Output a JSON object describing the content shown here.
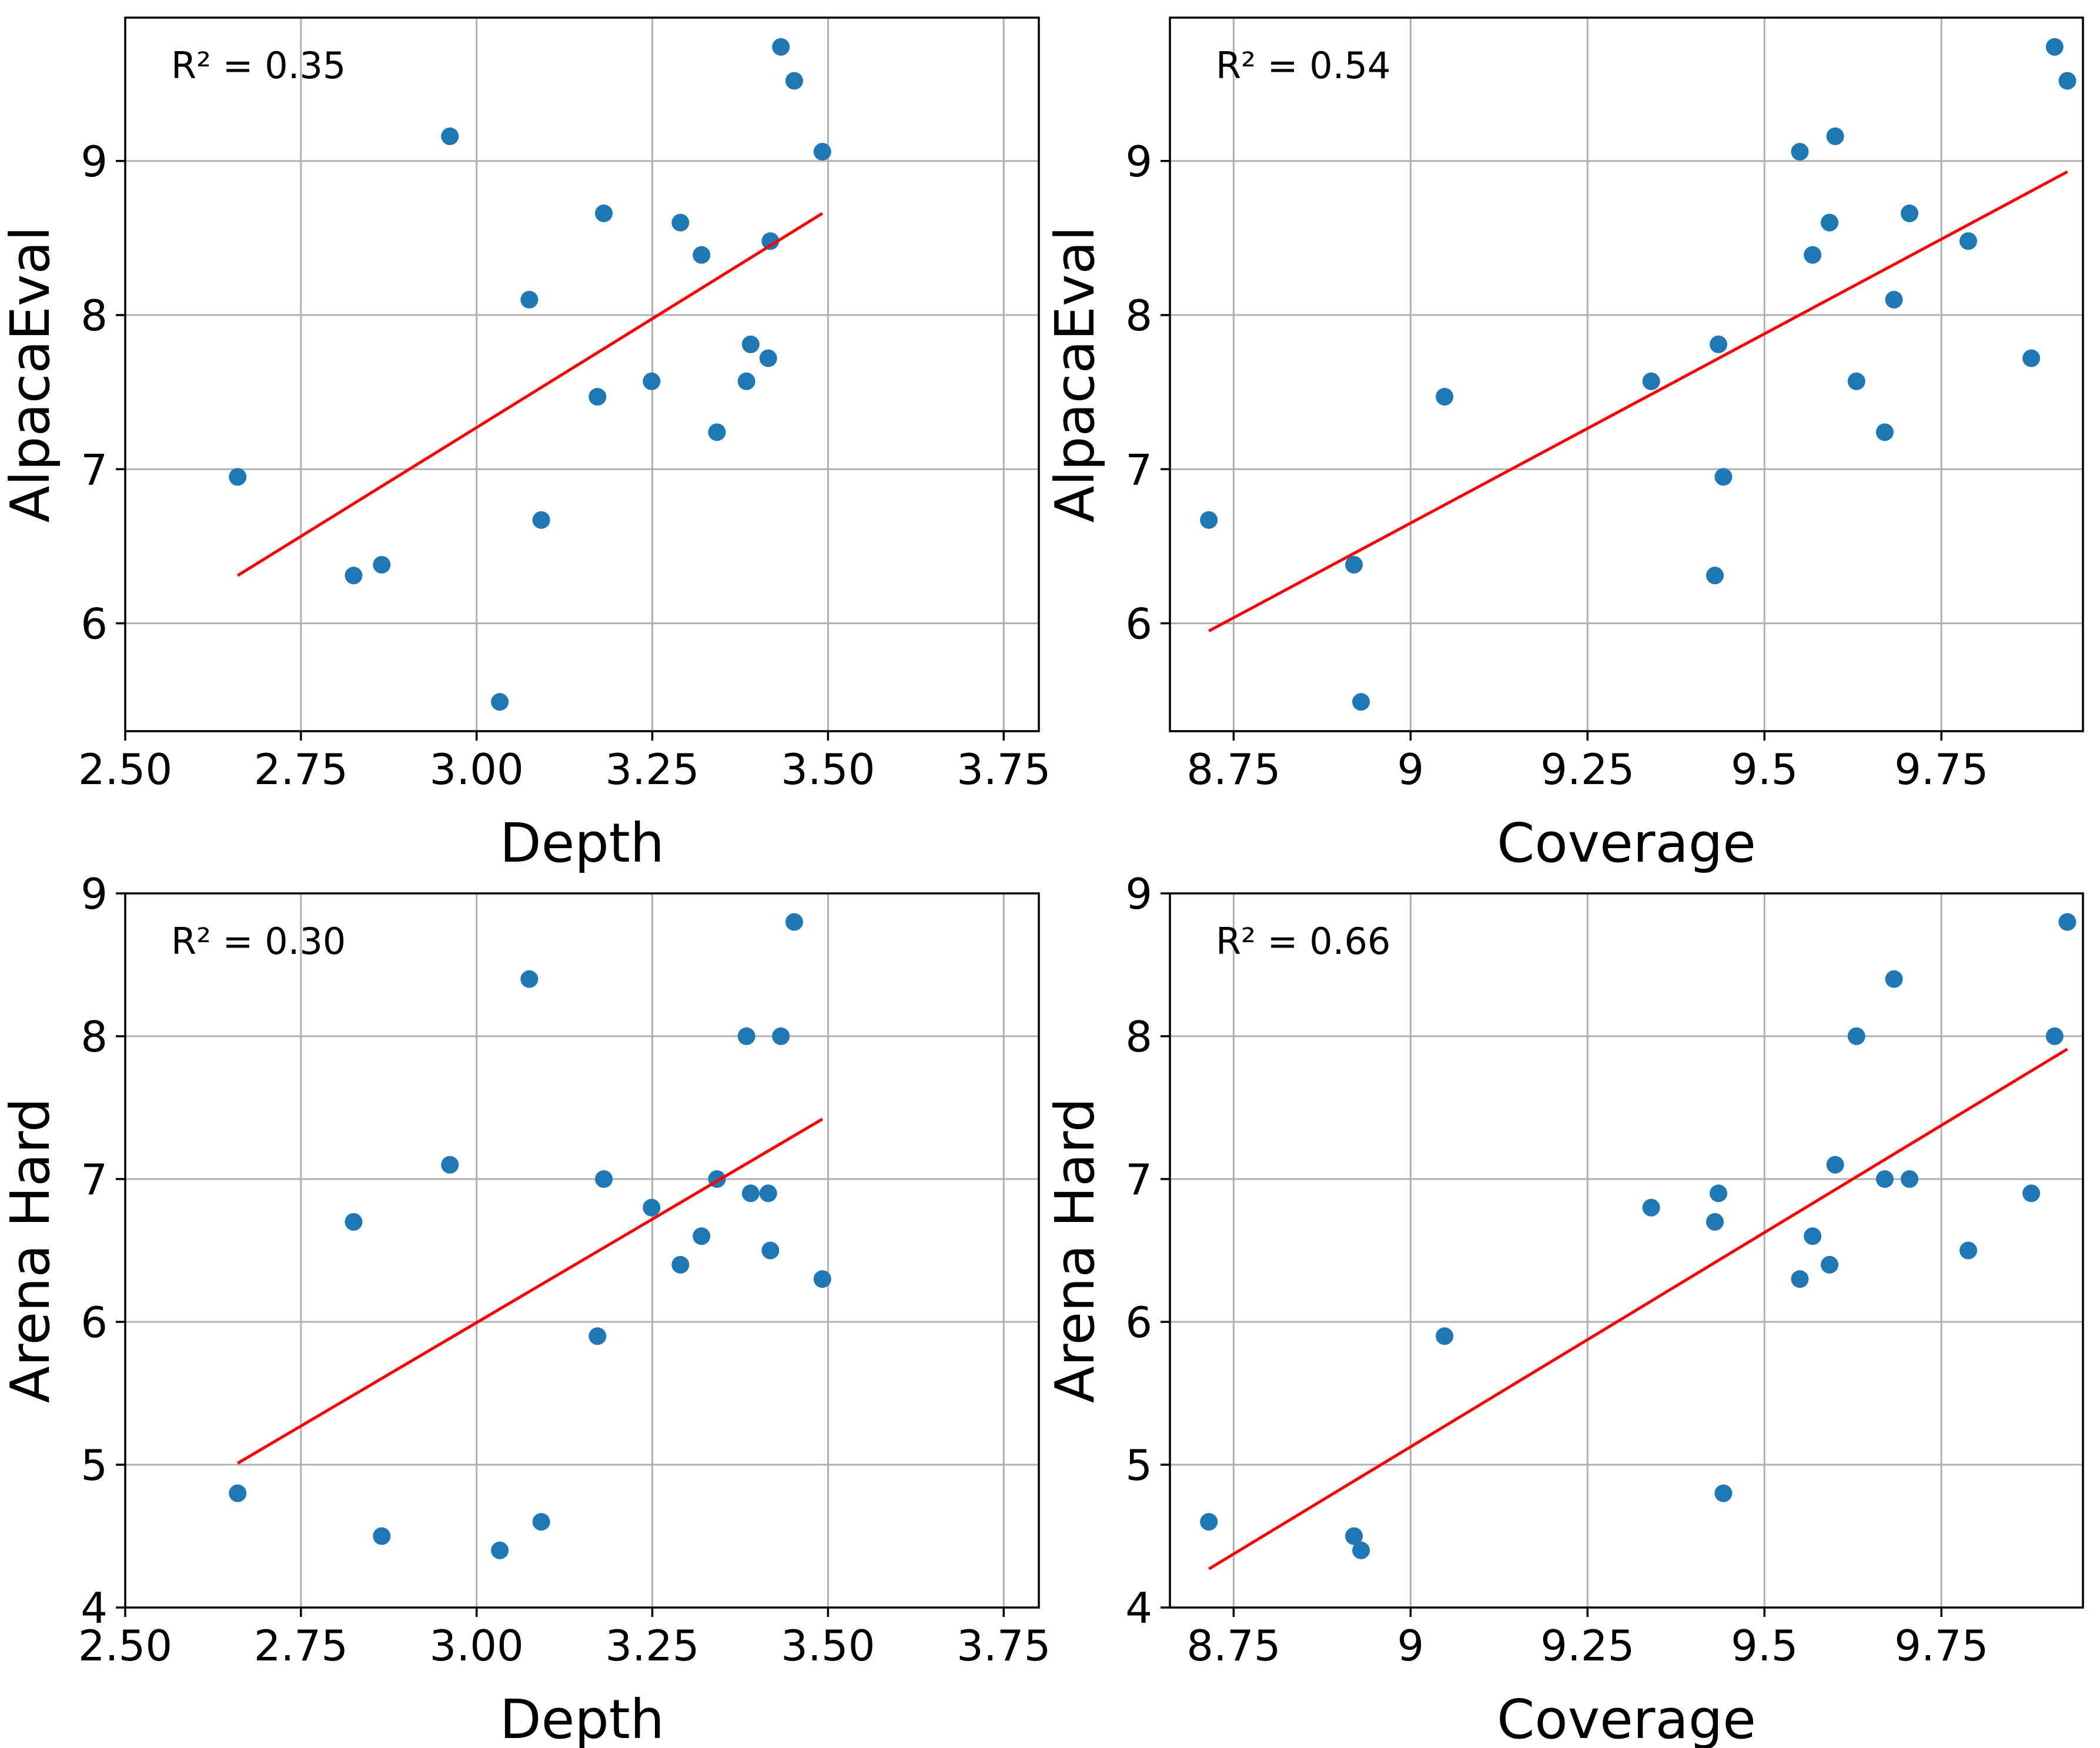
{
  "colors": {
    "points": "#1f77b4",
    "fit_line": "#ff0000",
    "grid": "#b0b0b0"
  },
  "chart_data": [
    {
      "type": "scatter",
      "xlabel": "Depth",
      "ylabel": "AlpacaEval",
      "annotation": "R² = 0.35",
      "xlim": [
        2.5,
        3.8
      ],
      "ylim": [
        5.3,
        9.93
      ],
      "xticks": [
        2.5,
        2.75,
        3.0,
        3.25,
        3.5,
        3.75
      ],
      "xtick_labels": [
        "2.50",
        "2.75",
        "3.00",
        "3.25",
        "3.50",
        "3.75"
      ],
      "yticks": [
        6,
        7,
        8,
        9
      ],
      "ytick_labels": [
        "6",
        "7",
        "8",
        "9"
      ],
      "points": [
        [
          2.66,
          6.95
        ],
        [
          2.825,
          6.31
        ],
        [
          2.865,
          6.38
        ],
        [
          2.962,
          9.16
        ],
        [
          3.033,
          5.49
        ],
        [
          3.075,
          8.1
        ],
        [
          3.092,
          6.67
        ],
        [
          3.172,
          7.47
        ],
        [
          3.181,
          8.66
        ],
        [
          3.249,
          7.57
        ],
        [
          3.29,
          8.6
        ],
        [
          3.32,
          8.39
        ],
        [
          3.342,
          7.24
        ],
        [
          3.384,
          7.57
        ],
        [
          3.39,
          7.81
        ],
        [
          3.415,
          7.72
        ],
        [
          3.418,
          8.48
        ],
        [
          3.433,
          9.74
        ],
        [
          3.452,
          9.52
        ],
        [
          3.492,
          9.06
        ]
      ],
      "fit_line": [
        [
          2.66,
          6.31
        ],
        [
          3.492,
          8.66
        ]
      ]
    },
    {
      "type": "scatter",
      "xlabel": "Coverage",
      "ylabel": "AlpacaEval",
      "annotation": "R² = 0.54",
      "xlim": [
        8.66,
        9.95
      ],
      "ylim": [
        5.3,
        9.93
      ],
      "xticks": [
        8.75,
        9.0,
        9.25,
        9.5,
        9.75
      ],
      "xtick_labels": [
        "8.75",
        "9",
        "9.25",
        "9.5",
        "9.75"
      ],
      "yticks": [
        6,
        7,
        8,
        9
      ],
      "ytick_labels": [
        "6",
        "7",
        "8",
        "9"
      ],
      "points": [
        [
          8.715,
          6.67
        ],
        [
          8.92,
          6.38
        ],
        [
          8.93,
          5.49
        ],
        [
          9.048,
          7.47
        ],
        [
          9.34,
          7.57
        ],
        [
          9.43,
          6.31
        ],
        [
          9.435,
          7.81
        ],
        [
          9.442,
          6.95
        ],
        [
          9.55,
          9.06
        ],
        [
          9.568,
          8.39
        ],
        [
          9.592,
          8.6
        ],
        [
          9.6,
          9.16
        ],
        [
          9.63,
          7.57
        ],
        [
          9.67,
          7.24
        ],
        [
          9.683,
          8.1
        ],
        [
          9.705,
          8.66
        ],
        [
          9.788,
          8.48
        ],
        [
          9.877,
          7.72
        ],
        [
          9.91,
          9.74
        ],
        [
          9.928,
          9.52
        ]
      ],
      "fit_line": [
        [
          8.715,
          5.95
        ],
        [
          9.928,
          8.93
        ]
      ]
    },
    {
      "type": "scatter",
      "xlabel": "Depth",
      "ylabel": "Arena Hard",
      "annotation": "R² = 0.30",
      "xlim": [
        2.5,
        3.8
      ],
      "ylim": [
        4.0,
        9.0
      ],
      "xticks": [
        2.5,
        2.75,
        3.0,
        3.25,
        3.5,
        3.75
      ],
      "xtick_labels": [
        "2.50",
        "2.75",
        "3.00",
        "3.25",
        "3.50",
        "3.75"
      ],
      "yticks": [
        4,
        5,
        6,
        7,
        8,
        9
      ],
      "ytick_labels": [
        "4",
        "5",
        "6",
        "7",
        "8",
        "9"
      ],
      "points": [
        [
          2.66,
          4.8
        ],
        [
          2.825,
          6.7
        ],
        [
          2.865,
          4.5
        ],
        [
          2.962,
          7.1
        ],
        [
          3.033,
          4.4
        ],
        [
          3.075,
          8.4
        ],
        [
          3.092,
          4.6
        ],
        [
          3.172,
          5.9
        ],
        [
          3.181,
          7.0
        ],
        [
          3.249,
          6.8
        ],
        [
          3.29,
          6.4
        ],
        [
          3.32,
          6.6
        ],
        [
          3.342,
          7.0
        ],
        [
          3.384,
          8.0
        ],
        [
          3.39,
          6.9
        ],
        [
          3.415,
          6.9
        ],
        [
          3.418,
          6.5
        ],
        [
          3.433,
          8.0
        ],
        [
          3.452,
          8.8
        ],
        [
          3.492,
          6.3
        ]
      ],
      "fit_line": [
        [
          2.66,
          5.01
        ],
        [
          3.492,
          7.42
        ]
      ]
    },
    {
      "type": "scatter",
      "xlabel": "Coverage",
      "ylabel": "Arena Hard",
      "annotation": "R² = 0.66",
      "xlim": [
        8.66,
        9.95
      ],
      "ylim": [
        4.0,
        9.0
      ],
      "xticks": [
        8.75,
        9.0,
        9.25,
        9.5,
        9.75
      ],
      "xtick_labels": [
        "8.75",
        "9",
        "9.25",
        "9.5",
        "9.75"
      ],
      "yticks": [
        4,
        5,
        6,
        7,
        8,
        9
      ],
      "ytick_labels": [
        "4",
        "5",
        "6",
        "7",
        "8",
        "9"
      ],
      "points": [
        [
          8.715,
          4.6
        ],
        [
          8.92,
          4.5
        ],
        [
          8.93,
          4.4
        ],
        [
          9.048,
          5.9
        ],
        [
          9.34,
          6.8
        ],
        [
          9.43,
          6.7
        ],
        [
          9.435,
          6.9
        ],
        [
          9.442,
          4.8
        ],
        [
          9.55,
          6.3
        ],
        [
          9.568,
          6.6
        ],
        [
          9.592,
          6.4
        ],
        [
          9.6,
          7.1
        ],
        [
          9.63,
          8.0
        ],
        [
          9.67,
          7.0
        ],
        [
          9.683,
          8.4
        ],
        [
          9.705,
          7.0
        ],
        [
          9.788,
          6.5
        ],
        [
          9.877,
          6.9
        ],
        [
          9.91,
          8.0
        ],
        [
          9.928,
          8.8
        ]
      ],
      "fit_line": [
        [
          8.715,
          4.27
        ],
        [
          9.928,
          7.91
        ]
      ]
    }
  ]
}
